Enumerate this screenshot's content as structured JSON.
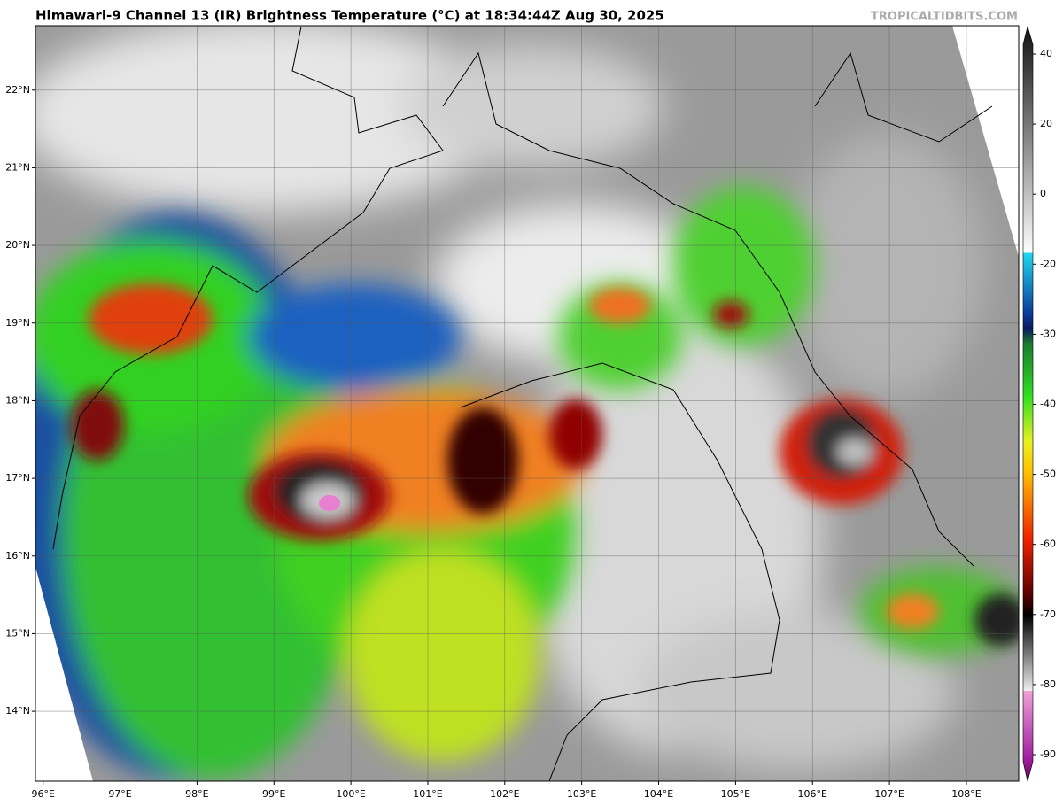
{
  "title": "Himawari-9 Channel 13 (IR) Brightness Temperature (°C) at 18:34:44Z Aug 30, 2025",
  "watermark": "TROPICALTIDBITS.COM",
  "map": {
    "xlim": [
      95.9,
      108.68
    ],
    "ylim": [
      13.1,
      22.83
    ],
    "lon_ticks": [
      {
        "value": 96,
        "label": "96°E"
      },
      {
        "value": 97,
        "label": "97°E"
      },
      {
        "value": 98,
        "label": "98°E"
      },
      {
        "value": 99,
        "label": "99°E"
      },
      {
        "value": 100,
        "label": "100°E"
      },
      {
        "value": 101,
        "label": "101°E"
      },
      {
        "value": 102,
        "label": "102°E"
      },
      {
        "value": 103,
        "label": "103°E"
      },
      {
        "value": 104,
        "label": "104°E"
      },
      {
        "value": 105,
        "label": "105°E"
      },
      {
        "value": 106,
        "label": "106°E"
      },
      {
        "value": 107,
        "label": "107°E"
      },
      {
        "value": 108,
        "label": "108°E"
      }
    ],
    "lat_ticks": [
      {
        "value": 14,
        "label": "14°N"
      },
      {
        "value": 15,
        "label": "15°N"
      },
      {
        "value": 16,
        "label": "16°N"
      },
      {
        "value": 17,
        "label": "17°N"
      },
      {
        "value": 18,
        "label": "18°N"
      },
      {
        "value": 19,
        "label": "19°N"
      },
      {
        "value": 20,
        "label": "20°N"
      },
      {
        "value": 21,
        "label": "21°N"
      },
      {
        "value": 22,
        "label": "22°N"
      }
    ]
  },
  "colorbar": {
    "ticks": [
      40,
      20,
      0,
      -20,
      -30,
      -40,
      -50,
      -60,
      -70,
      -80,
      -90
    ]
  }
}
